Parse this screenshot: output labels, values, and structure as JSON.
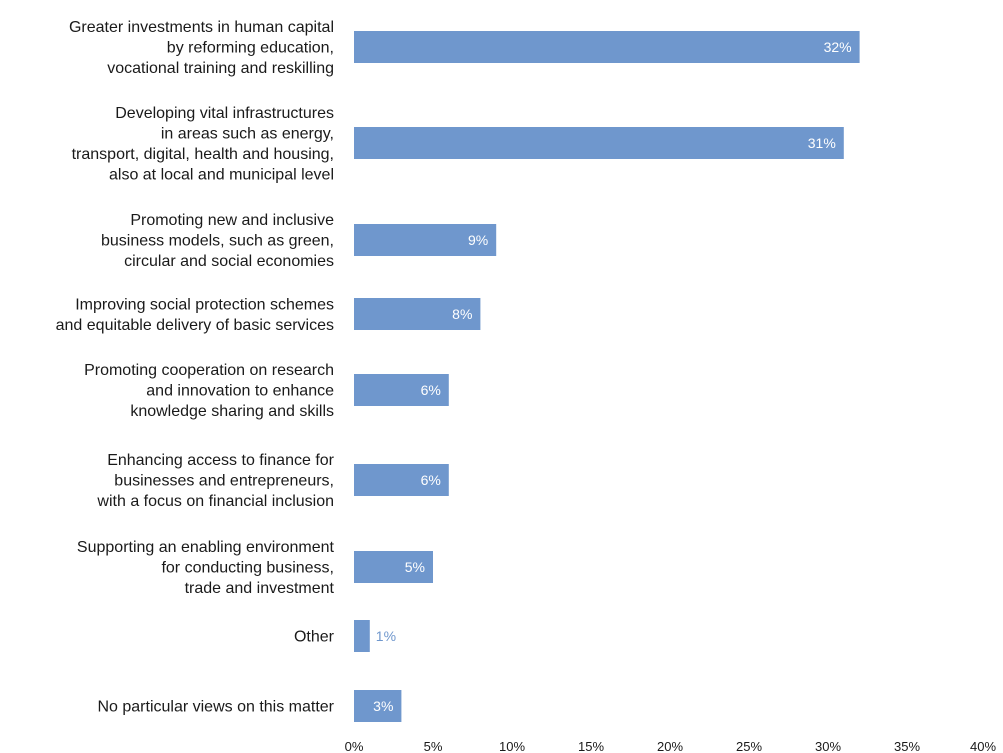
{
  "chart_data": {
    "type": "bar",
    "orientation": "horizontal",
    "categories": [
      [
        "Greater investments in human capital",
        "by reforming education,",
        "vocational training and reskilling"
      ],
      [
        "Developing vital infrastructures",
        "in areas such as energy,",
        "transport, digital, health and housing,",
        "also at local and municipal level"
      ],
      [
        "Promoting new and inclusive",
        "business models, such as green,",
        "circular and social economies"
      ],
      [
        "Improving social protection schemes",
        "and equitable delivery of basic services"
      ],
      [
        "Promoting cooperation on research",
        "and innovation to enhance",
        "knowledge sharing and skills"
      ],
      [
        "Enhancing access to finance for",
        "businesses and entrepreneurs,",
        "with a focus on financial inclusion"
      ],
      [
        "Supporting an enabling environment",
        "for conducting business,",
        "trade and investment"
      ],
      [
        "Other"
      ],
      [
        "No particular views on this matter"
      ]
    ],
    "values": [
      32,
      31,
      9,
      8,
      6,
      6,
      5,
      1,
      3
    ],
    "value_labels": [
      "32%",
      "31%",
      "9%",
      "8%",
      "6%",
      "6%",
      "5%",
      "1%",
      "3%"
    ],
    "xlim": [
      0,
      40
    ],
    "x_ticks": [
      0,
      5,
      10,
      15,
      20,
      25,
      30,
      35,
      40
    ],
    "x_tick_labels": [
      "0%",
      "5%",
      "10%",
      "15%",
      "20%",
      "25%",
      "30%",
      "35%",
      "40%"
    ],
    "grid": false,
    "legend": "none",
    "title": "",
    "xlabel": "",
    "ylabel": ""
  },
  "colors": {
    "bar": "#6f97cd",
    "label_inside": "#ffffff",
    "label_outside": "#6f97cd",
    "text": "#1a1a1a"
  }
}
